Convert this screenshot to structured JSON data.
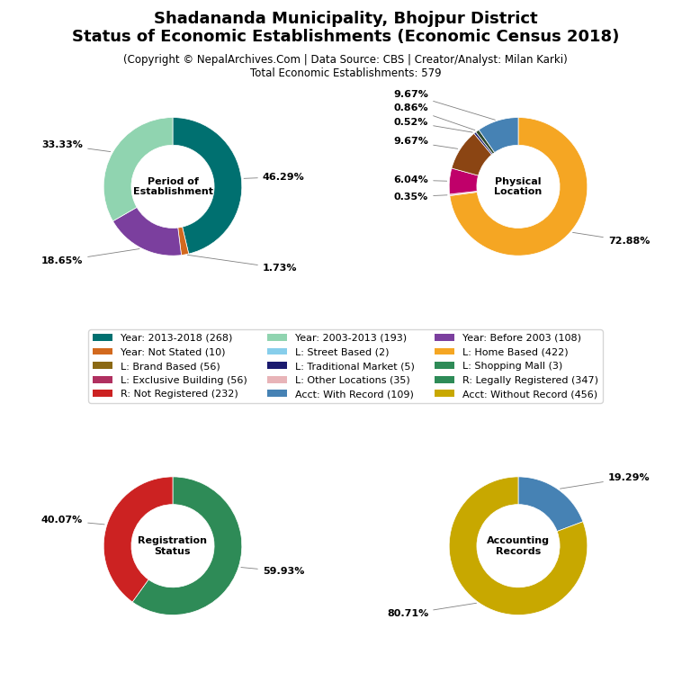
{
  "title": "Shadananda Municipality, Bhojpur District\nStatus of Economic Establishments (Economic Census 2018)",
  "subtitle": "(Copyright © NepalArchives.Com | Data Source: CBS | Creator/Analyst: Milan Karki)\nTotal Economic Establishments: 579",
  "legend": "center",
  "legend_entries": [
    {
      "name": "Year: 2013-2018 (268)",
      "color": "#007070"
    },
    {
      "name": "Year: Not Stated (10)",
      "color": "#d2691e"
    },
    {
      "name": "L: Brand Based (56)",
      "color": "#8b6914"
    },
    {
      "name": "L: Exclusive Building (56)",
      "color": "#b03060"
    },
    {
      "name": "R: Not Registered (232)",
      "color": "#cc2222"
    },
    {
      "name": "Year: 2003-2013 (193)",
      "color": "#90d4b0"
    },
    {
      "name": "L: Street Based (2)",
      "color": "#87ceeb"
    },
    {
      "name": "L: Traditional Market (5)",
      "color": "#1a1a6e"
    },
    {
      "name": "L: Other Locations (35)",
      "color": "#e8b4b8"
    },
    {
      "name": "Acct: With Record (109)",
      "color": "#4682b4"
    },
    {
      "name": "Year: Before 2003 (108)",
      "color": "#7b3f9e"
    },
    {
      "name": "L: Home Based (422)",
      "color": "#f5a623"
    },
    {
      "name": "L: Shopping Mall (3)",
      "color": "#2e8b57"
    },
    {
      "name": "R: Legally Registered (347)",
      "color": "#2e8b57"
    },
    {
      "name": "Acct: Without Record (456)",
      "color": "#c8a800"
    }
  ],
  "chart_data": [
    {
      "type": "pie",
      "title": "Period of\nEstablishment",
      "values": [
        46.29,
        1.73,
        18.65,
        33.33
      ],
      "value_labels": [
        "46.29%",
        "1.73%",
        "18.65%",
        "33.33%"
      ],
      "colors": [
        "#007070",
        "#d2691e",
        "#7b3f9e",
        "#90d4b0"
      ],
      "data_labels": true
    },
    {
      "type": "pie",
      "title": "Physical\nLocation",
      "values": [
        72.88,
        0.35,
        6.04,
        9.67,
        0.52,
        0.86,
        9.67
      ],
      "value_labels": [
        "72.88%",
        "0.35%",
        "6.04%",
        "9.67%",
        "0.52%",
        "0.86%",
        "9.67%"
      ],
      "colors": [
        "#f5a623",
        "#e8b4b8",
        "#c0006a",
        "#8b4513",
        "#1a1a6e",
        "#2e4a2e",
        "#4682b4"
      ],
      "data_labels": true
    },
    {
      "type": "pie",
      "title": "Registration\nStatus",
      "values": [
        59.93,
        40.07
      ],
      "value_labels": [
        "59.93%",
        "40.07%"
      ],
      "colors": [
        "#2e8b57",
        "#cc2222"
      ],
      "data_labels": true
    },
    {
      "type": "pie",
      "title": "Accounting\nRecords",
      "values": [
        19.29,
        80.71
      ],
      "value_labels": [
        "19.29%",
        "80.71%"
      ],
      "colors": [
        "#4682b4",
        "#c8a800"
      ],
      "data_labels": true
    }
  ]
}
